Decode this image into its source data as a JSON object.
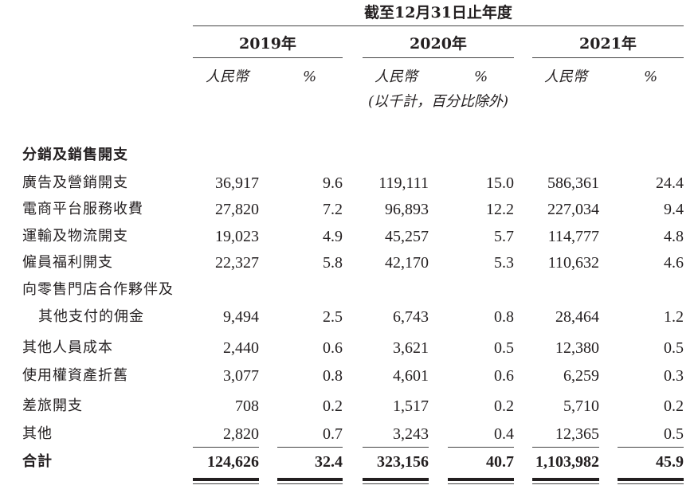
{
  "header": {
    "period": "截至12月31日止年度",
    "years": [
      "2019年",
      "2020年",
      "2021年"
    ],
    "subheads": [
      "人民幣",
      "%",
      "人民幣",
      "%",
      "人民幣",
      "%"
    ],
    "note": "(以千計，百分比除外)"
  },
  "section_title": "分銷及銷售開支",
  "rows": [
    {
      "label": "廣告及營銷開支",
      "values": [
        "36,917",
        "9.6",
        "119,111",
        "15.0",
        "586,361",
        "24.4"
      ]
    },
    {
      "label": "電商平台服務收費",
      "values": [
        "27,820",
        "7.2",
        "96,893",
        "12.2",
        "227,034",
        "9.4"
      ]
    },
    {
      "label": "運輸及物流開支",
      "values": [
        "19,023",
        "4.9",
        "45,257",
        "5.7",
        "114,777",
        "4.8"
      ]
    },
    {
      "label": "僱員福利開支",
      "values": [
        "22,327",
        "5.8",
        "42,170",
        "5.3",
        "110,632",
        "4.6"
      ]
    },
    {
      "label": "向零售門店合作夥伴及",
      "label2": "其他支付的佣金",
      "values": [
        "9,494",
        "2.5",
        "6,743",
        "0.8",
        "28,464",
        "1.2"
      ]
    },
    {
      "label": "其他人員成本",
      "values": [
        "2,440",
        "0.6",
        "3,621",
        "0.5",
        "12,380",
        "0.5"
      ]
    },
    {
      "label": "使用權資產折舊",
      "values": [
        "3,077",
        "0.8",
        "4,601",
        "0.6",
        "6,259",
        "0.3"
      ]
    },
    {
      "label": "差旅開支",
      "values": [
        "708",
        "0.2",
        "1,517",
        "0.2",
        "5,710",
        "0.2"
      ]
    },
    {
      "label": "其他",
      "values": [
        "2,820",
        "0.7",
        "3,243",
        "0.4",
        "12,365",
        "0.5"
      ]
    }
  ],
  "total": {
    "label": "合計",
    "values": [
      "124,626",
      "32.4",
      "323,156",
      "40.7",
      "1,103,982",
      "45.9"
    ]
  }
}
